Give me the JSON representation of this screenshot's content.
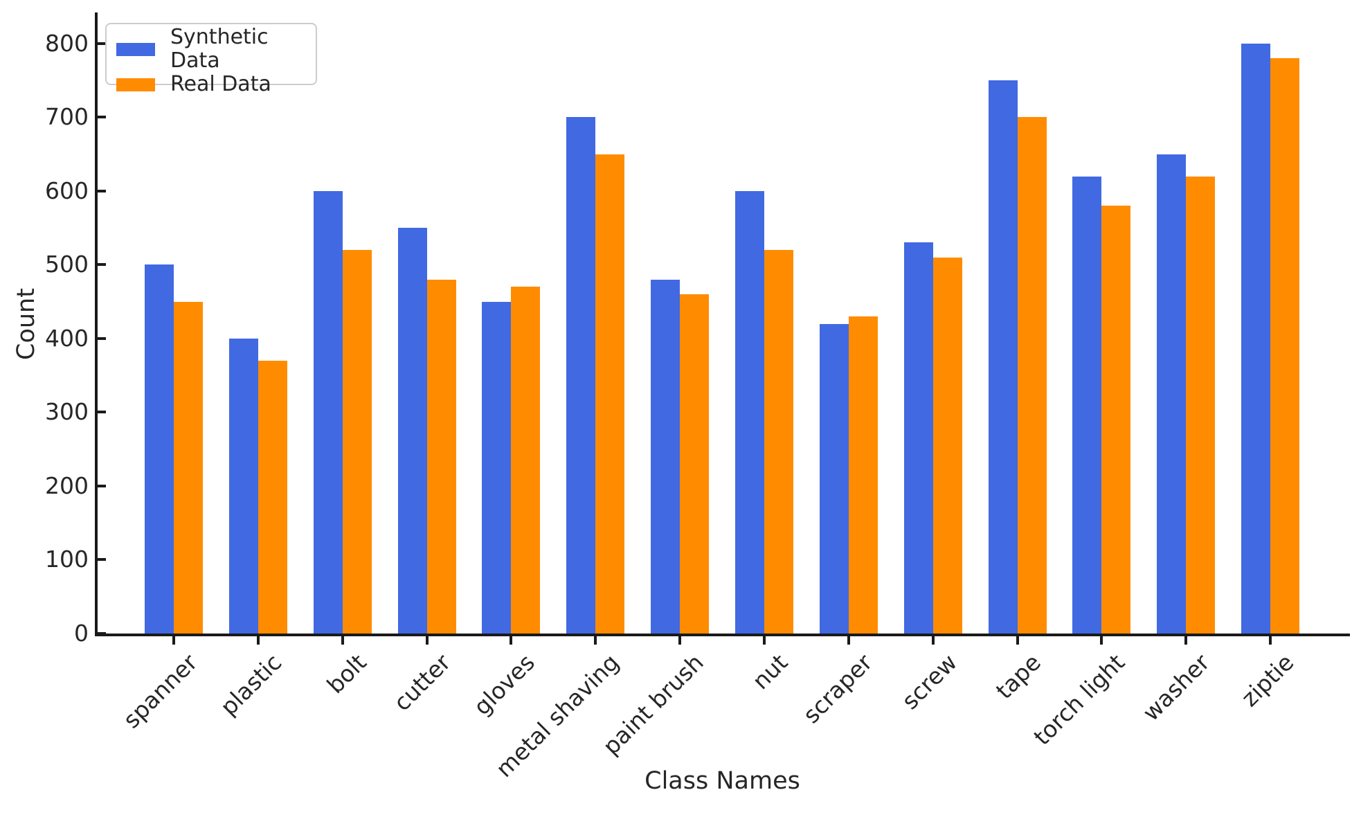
{
  "figure": {
    "background": "#ffffff"
  },
  "chart_data": {
    "type": "bar",
    "title": "",
    "xlabel": "Class Names",
    "ylabel": "Count",
    "categories": [
      "spanner",
      "plastic",
      "bolt",
      "cutter",
      "gloves",
      "metal shaving",
      "paint brush",
      "nut",
      "scraper",
      "screw",
      "tape",
      "torch light",
      "washer",
      "ziptie"
    ],
    "series": [
      {
        "name": "Synthetic Data",
        "color": "#4169E1",
        "values": [
          500,
          400,
          600,
          550,
          450,
          700,
          480,
          600,
          420,
          530,
          750,
          620,
          650,
          800
        ]
      },
      {
        "name": "Real Data",
        "color": "#FF8C00",
        "values": [
          450,
          370,
          520,
          480,
          470,
          650,
          460,
          520,
          430,
          510,
          700,
          580,
          620,
          780
        ]
      }
    ],
    "ylim": [
      0,
      842
    ],
    "yticks": [
      0,
      100,
      200,
      300,
      400,
      500,
      600,
      700,
      800
    ],
    "xtick_rotation_deg": 45,
    "legend_position": "upper left",
    "grid": false,
    "axis_color": "#1a1a1a",
    "text_color": "#262626"
  }
}
